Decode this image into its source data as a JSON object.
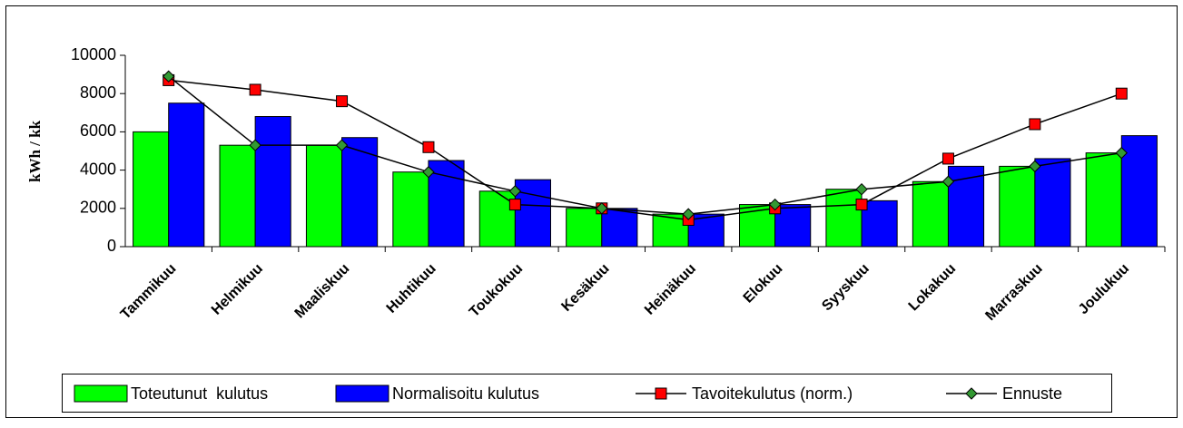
{
  "chart_data": {
    "type": "bar",
    "y_label": "kWh / kk",
    "categories": [
      "Tammikuu",
      "Helmikuu",
      "Maaliskuu",
      "Huhtikuu",
      "Toukokuu",
      "Kesäkuu",
      "Heinäkuu",
      "Elokuu",
      "Syyskuu",
      "Lokakuu",
      "Marraskuu",
      "Joulukuu"
    ],
    "series": [
      {
        "name": "Toteutunut  kulutus",
        "type": "bar",
        "color": "#00ff00",
        "values": [
          6000,
          5300,
          5300,
          3900,
          2900,
          2000,
          1700,
          2200,
          3000,
          3400,
          4200,
          4900
        ]
      },
      {
        "name": "Normalisoitu kulutus",
        "type": "bar",
        "color": "#0000ff",
        "values": [
          7500,
          6800,
          5700,
          4500,
          3500,
          2000,
          1700,
          2200,
          2400,
          4200,
          4600,
          5800
        ]
      },
      {
        "name": "Tavoitekulutus (norm.)",
        "type": "line",
        "marker": "square",
        "color": "#ff0000",
        "values": [
          8700,
          8200,
          7600,
          5200,
          2200,
          2000,
          1400,
          2000,
          2200,
          4600,
          6400,
          8000
        ]
      },
      {
        "name": "Ennuste",
        "type": "line",
        "marker": "diamond",
        "color": "#339933",
        "values": [
          8900,
          5300,
          5300,
          3900,
          2900,
          2000,
          1700,
          2200,
          3000,
          3400,
          4200,
          4900
        ]
      }
    ],
    "ylim": [
      0,
      10000
    ],
    "yticks": [
      0,
      2000,
      4000,
      6000,
      8000,
      10000
    ],
    "grid": false,
    "legend": "bottom"
  }
}
